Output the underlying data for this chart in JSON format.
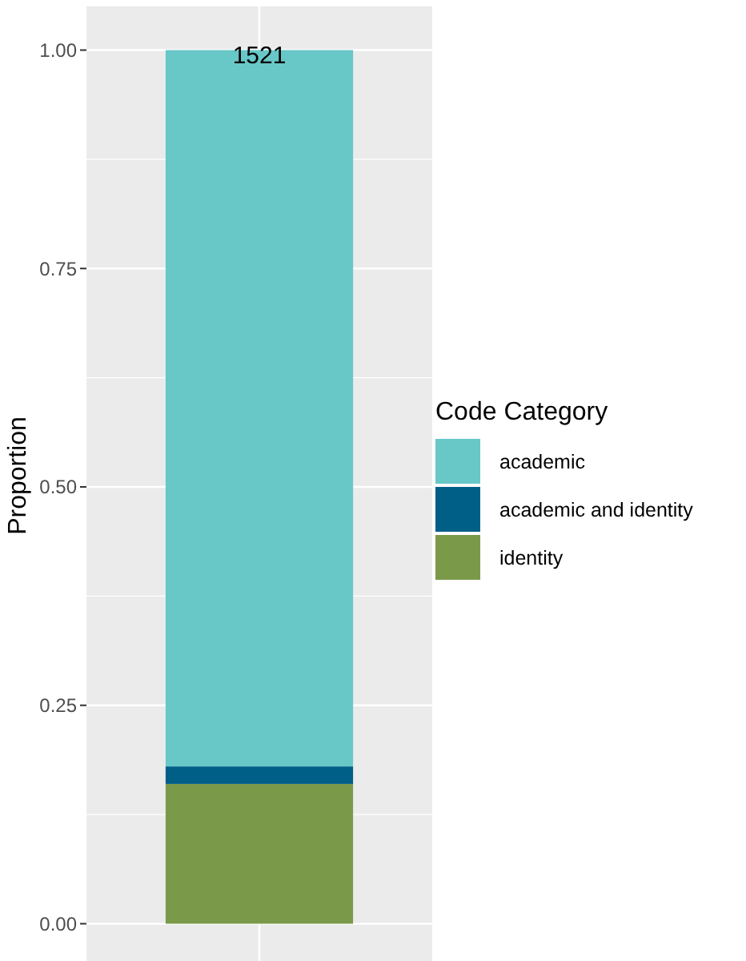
{
  "chart_data": {
    "type": "bar",
    "stacked": true,
    "categories": [
      null
    ],
    "series": [
      {
        "name": "identity",
        "color": "#7a9a4a",
        "values": [
          0.16
        ]
      },
      {
        "name": "academic and identity",
        "color": "#005f87",
        "values": [
          0.02
        ]
      },
      {
        "name": "academic",
        "color": "#68c7c7",
        "values": [
          0.82
        ]
      }
    ],
    "ylabel": "Proportion",
    "legend_title": "Code Category",
    "legend": "right",
    "ylim": [
      -0.05,
      1.05
    ],
    "yticks": [
      {
        "value": 0,
        "label": "0.00"
      },
      {
        "value": 0.25,
        "label": "0.25"
      },
      {
        "value": 0.5,
        "label": "0.50"
      },
      {
        "value": 0.75,
        "label": "0.75"
      },
      {
        "value": 1,
        "label": "1.00"
      }
    ],
    "grid": true,
    "annotations": [
      "1521"
    ]
  }
}
